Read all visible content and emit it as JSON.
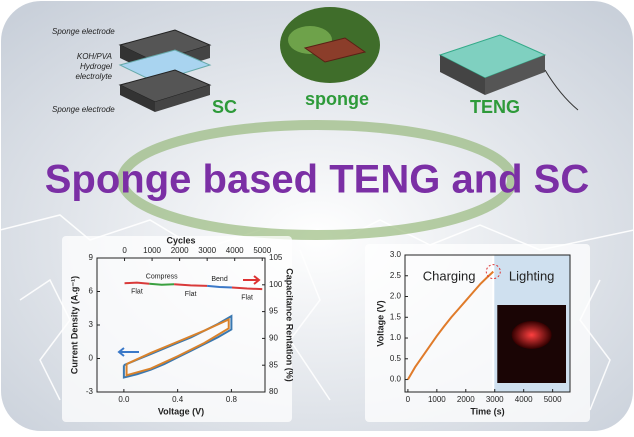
{
  "title": "Sponge based TENG and SC",
  "labels": {
    "sponge_electrode_top": "Sponge electrode",
    "electrolyte": [
      "KOH/PVA",
      "Hydrogel",
      "electrolyte"
    ],
    "sponge_electrode_bottom": "Sponge electrode",
    "sc": "SC",
    "sponge": "sponge",
    "teng": "TENG"
  },
  "chart_data": [
    {
      "type": "line",
      "xlabel": "Voltage (V)",
      "ylabel": "Current Density (A.g⁻¹)",
      "x2label": "Cycles",
      "y2label": "Capacitance Rentation (%)",
      "xlim": [
        -0.2,
        1.05
      ],
      "xticks": [
        {
          "value": 0,
          "label": "0.0"
        },
        0.4,
        0.8
      ],
      "ylim": [
        -3,
        9
      ],
      "yticks": [
        -3,
        0,
        3,
        6,
        9
      ],
      "x2lim": [
        -1000,
        5100
      ],
      "x2ticks": [
        0,
        1000,
        2000,
        3000,
        4000,
        5000
      ],
      "y2lim": [
        80,
        105
      ],
      "y2ticks": [
        80,
        85,
        90,
        95,
        100,
        105
      ],
      "series": [
        {
          "color": "#3a78b0",
          "x": [
            0,
            0.1,
            0.2,
            0.3,
            0.4,
            0.5,
            0.6,
            0.7,
            0.8,
            0.8,
            0.7,
            0.6,
            0.5,
            0.4,
            0.3,
            0.2,
            0.1,
            0,
            0
          ],
          "values": [
            -0.6,
            -0.1,
            0.4,
            0.9,
            1.4,
            1.9,
            2.5,
            3.1,
            3.8,
            2.6,
            1.9,
            1.3,
            0.7,
            0.1,
            -0.5,
            -1.0,
            -1.4,
            -1.7,
            -0.6
          ]
        },
        {
          "color": "#d9822b",
          "x": [
            0.02,
            0.2,
            0.4,
            0.6,
            0.78,
            0.78,
            0.6,
            0.4,
            0.2,
            0.02,
            0.02
          ],
          "values": [
            -0.5,
            0.5,
            1.5,
            2.5,
            3.5,
            2.7,
            1.4,
            0.2,
            -0.9,
            -1.5,
            -0.5
          ]
        },
        {
          "axis": "y2",
          "color": "#d93a3a",
          "label": "Flat",
          "x": [
            0,
            450,
            900
          ],
          "values": [
            100.3,
            100.4,
            100.2
          ]
        },
        {
          "axis": "y2",
          "color": "#3aa040",
          "label": "Compress",
          "x": [
            900,
            1350,
            1800
          ],
          "values": [
            100.2,
            100.0,
            100.1
          ]
        },
        {
          "axis": "y2",
          "color": "#d93a3a",
          "label": "Flat",
          "x": [
            1800,
            2400,
            3000
          ],
          "values": [
            100.1,
            99.9,
            99.8
          ]
        },
        {
          "axis": "y2",
          "color": "#3a78c8",
          "label": "Bend",
          "x": [
            3000,
            3450,
            3900
          ],
          "values": [
            99.8,
            99.6,
            99.5
          ]
        },
        {
          "axis": "y2",
          "color": "#d93a3a",
          "label": "Flat",
          "x": [
            3900,
            4450,
            5000
          ],
          "values": [
            99.5,
            99.3,
            99.2
          ]
        }
      ]
    },
    {
      "type": "line",
      "xlabel": "Time (s)",
      "ylabel": "Voltage (V)",
      "region_labels": [
        "Charging",
        "Lighting"
      ],
      "xlim": [
        -100,
        5600
      ],
      "xticks": [
        0,
        1000,
        2000,
        3000,
        4000,
        5000
      ],
      "ylim": [
        -0.3,
        3.0
      ],
      "yticks": [
        {
          "value": 0,
          "label": "0.0"
        },
        0.5,
        {
          "value": 1,
          "label": "1.0"
        },
        1.5,
        {
          "value": 2,
          "label": "2.0"
        },
        2.5,
        {
          "value": 3,
          "label": "3.0"
        }
      ],
      "series": [
        {
          "color": "#e07b2a",
          "x": [
            0,
            250,
            500,
            750,
            1000,
            1250,
            1500,
            1750,
            2000,
            2250,
            2500,
            2750,
            2950
          ],
          "values": [
            0,
            0.3,
            0.55,
            0.8,
            1.05,
            1.28,
            1.5,
            1.7,
            1.9,
            2.1,
            2.3,
            2.47,
            2.6
          ]
        }
      ]
    }
  ]
}
